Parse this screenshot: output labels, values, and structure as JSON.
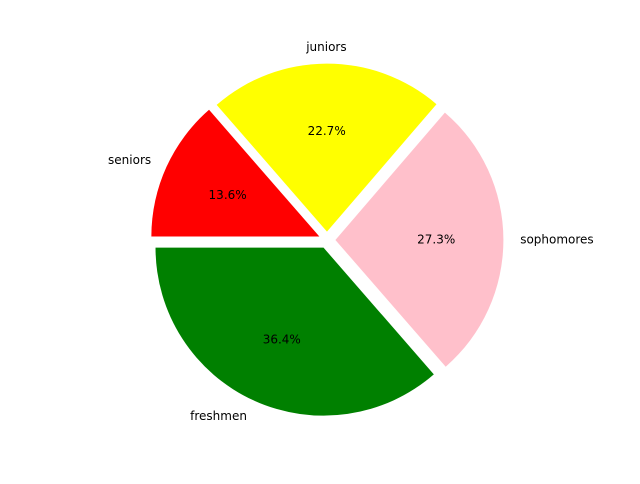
{
  "chart_data": {
    "type": "pie",
    "title": "",
    "categories": [
      "freshmen",
      "sophomores",
      "juniors",
      "seniors"
    ],
    "values": [
      36.4,
      27.3,
      22.7,
      13.6
    ],
    "labels": [
      "freshmen",
      "sophomores",
      "juniors",
      "seniors"
    ],
    "percent_labels": [
      "36.4%",
      "27.3%",
      "22.7%",
      "13.6%"
    ],
    "colors": [
      "#008000",
      "#ffc0cb",
      "#ffff00",
      "#ff0000"
    ],
    "exploded": true,
    "legend": "none"
  }
}
